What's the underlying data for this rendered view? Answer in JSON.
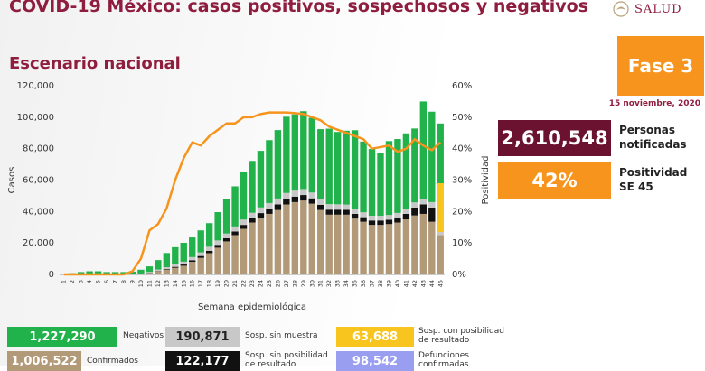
{
  "header": {
    "title": "COVID-19 México: casos positivos, sospechosos y negativos",
    "subtitle": "Escenario nacional",
    "logo_text": "SALUD"
  },
  "badge": {
    "fase": "Fase 3",
    "date": "15 noviembre, 2020"
  },
  "stats": {
    "personas_value": "2,610,548",
    "personas_label_1": "Personas",
    "personas_label_2": "notificadas",
    "positividad_value": "42%",
    "positividad_label_1": "Positividad",
    "positividad_label_2": "SE 45"
  },
  "legend": {
    "negativos": {
      "value": "1,227,290",
      "label": "Negativos"
    },
    "sosp_sin_muestra": {
      "value": "190,871",
      "label": "Sosp. sin muestra"
    },
    "sosp_con_posibilidad": {
      "value": "63,688",
      "label_1": "Sosp. con posibilidad",
      "label_2": "de resultado"
    },
    "confirmados": {
      "value": "1,006,522",
      "label": "Confirmados"
    },
    "sosp_sin_posibilidad": {
      "value": "122,177",
      "label_1": "Sosp. sin posibilidad",
      "label_2": "de resultado"
    },
    "defunciones": {
      "value": "98,542",
      "label_1": "Defunciones",
      "label_2": "confirmadas"
    }
  },
  "colors": {
    "negativos": "#21b24b",
    "confirmados": "#b29a78",
    "sosp_sin_muestra": "#c8c8c8",
    "sosp_sin_posibilidad": "#111111",
    "sosp_con_posibilidad": "#f7c51e",
    "defunciones": "#9a9ef0",
    "positividad_line": "#f7941d",
    "title": "#8f1d3f"
  },
  "chart_data": {
    "type": "bar",
    "xlabel": "Semana epidemiológica",
    "ylabel": "Casos",
    "y2label": "Positividad",
    "ylim": [
      0,
      120000
    ],
    "y2lim": [
      0,
      60
    ],
    "yticks": [
      "0",
      "20,000",
      "40,000",
      "60,000",
      "80,000",
      "100,000",
      "120,000"
    ],
    "y2ticks": [
      "0%",
      "10%",
      "20%",
      "30%",
      "40%",
      "50%",
      "60%"
    ],
    "categories": [
      "1",
      "2",
      "3",
      "4",
      "5",
      "6",
      "7",
      "8",
      "9",
      "10",
      "11",
      "12",
      "13",
      "14",
      "15",
      "16",
      "17",
      "18",
      "19",
      "20",
      "21",
      "22",
      "23",
      "24",
      "25",
      "26",
      "27",
      "28",
      "29",
      "30",
      "31",
      "32",
      "33",
      "34",
      "35",
      "36",
      "37",
      "38",
      "39",
      "40",
      "41",
      "42",
      "43",
      "44",
      "45"
    ],
    "series": [
      {
        "name": "Confirmados",
        "values": [
          0,
          0,
          0,
          0,
          0,
          0,
          0,
          0,
          100,
          400,
          1000,
          2000,
          3000,
          4200,
          5500,
          8000,
          10500,
          13500,
          17000,
          21000,
          25000,
          29000,
          33000,
          36000,
          38500,
          41000,
          44500,
          46000,
          47000,
          45000,
          41000,
          38000,
          38000,
          38000,
          35500,
          33500,
          31500,
          31500,
          32000,
          33000,
          35000,
          37500,
          38500,
          33500,
          25000
        ]
      },
      {
        "name": "Sosp. sin posibilidad de resultado",
        "values": [
          0,
          0,
          0,
          0,
          0,
          0,
          0,
          0,
          0,
          0,
          100,
          200,
          400,
          600,
          800,
          1000,
          1200,
          1500,
          1800,
          2000,
          2300,
          2500,
          2700,
          3000,
          3200,
          3500,
          3500,
          3500,
          3500,
          3400,
          3300,
          3200,
          3200,
          3100,
          3000,
          2900,
          2800,
          2800,
          2800,
          3000,
          3500,
          5000,
          6000,
          9000,
          0
        ]
      },
      {
        "name": "Sosp. sin muestra",
        "values": [
          0,
          0,
          0,
          0,
          0,
          0,
          0,
          0,
          100,
          200,
          500,
          900,
          1200,
          1500,
          1800,
          2000,
          2300,
          2600,
          2800,
          3000,
          3200,
          3400,
          3500,
          3600,
          3700,
          3800,
          3800,
          3800,
          3800,
          3700,
          3600,
          3500,
          3400,
          3300,
          3200,
          3100,
          3000,
          3000,
          3000,
          3100,
          3200,
          3300,
          3500,
          3500,
          2000
        ]
      },
      {
        "name": "Sosp. con posibilidad de resultado",
        "values": [
          0,
          0,
          0,
          0,
          0,
          0,
          0,
          0,
          0,
          0,
          0,
          0,
          0,
          0,
          0,
          0,
          0,
          0,
          0,
          0,
          0,
          0,
          0,
          0,
          0,
          0,
          0,
          0,
          0,
          0,
          0,
          0,
          0,
          0,
          0,
          0,
          0,
          0,
          0,
          0,
          0,
          0,
          0,
          0,
          31000
        ]
      },
      {
        "name": "Negativos",
        "values": [
          500,
          800,
          1500,
          2000,
          2000,
          1500,
          1500,
          1500,
          1600,
          2400,
          3500,
          6000,
          9000,
          11000,
          12000,
          12500,
          14000,
          15000,
          18000,
          22000,
          25500,
          30000,
          33000,
          36000,
          40000,
          43500,
          48500,
          48500,
          49500,
          47500,
          44500,
          48000,
          46000,
          47000,
          50000,
          45000,
          42500,
          40000,
          47000,
          47000,
          48000,
          47000,
          62000,
          57500,
          38000
        ]
      },
      {
        "name": "Positividad",
        "axis": "right",
        "values": [
          0,
          0,
          0,
          0,
          0,
          0,
          0,
          0,
          1,
          5,
          14,
          16,
          21,
          30,
          37,
          42,
          41,
          44,
          46,
          48,
          48,
          50,
          50,
          51,
          51.5,
          51.5,
          51.5,
          51.3,
          51,
          50,
          49,
          47,
          46,
          45,
          44,
          43,
          40,
          40.5,
          41,
          39,
          40,
          43,
          41,
          39.5,
          42
        ]
      }
    ]
  }
}
